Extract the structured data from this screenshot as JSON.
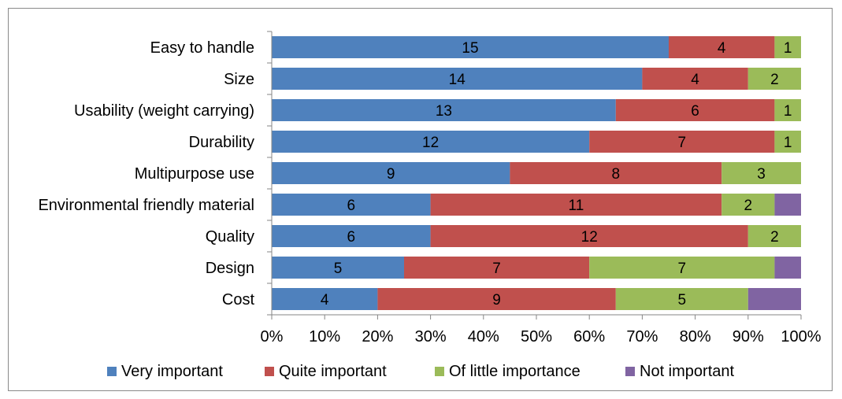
{
  "chart_data": {
    "type": "bar",
    "orientation": "horizontal",
    "stacked": "percent",
    "title": "",
    "xlabel": "",
    "ylabel": "",
    "xlim": [
      0,
      100
    ],
    "x_ticks": [
      "0%",
      "10%",
      "20%",
      "30%",
      "40%",
      "50%",
      "60%",
      "70%",
      "80%",
      "90%",
      "100%"
    ],
    "grid": false,
    "legend_position": "bottom",
    "categories": [
      "Easy to handle",
      "Size",
      "Usability (weight carrying)",
      "Durability",
      "Multipurpose use",
      "Environmental friendly material",
      "Quality",
      "Design",
      "Cost"
    ],
    "series": [
      {
        "name": "Very important",
        "color": "#4f81bd",
        "values": [
          15,
          14,
          13,
          12,
          9,
          6,
          6,
          5,
          4
        ]
      },
      {
        "name": "Quite important",
        "color": "#c0504d",
        "values": [
          4,
          4,
          6,
          7,
          8,
          11,
          12,
          7,
          9
        ]
      },
      {
        "name": "Of little importance",
        "color": "#9bbb59",
        "values": [
          1,
          2,
          1,
          1,
          3,
          2,
          2,
          7,
          5
        ]
      },
      {
        "name": "Not important",
        "color": "#8064a2",
        "values": [
          0,
          0,
          0,
          0,
          0,
          1,
          0,
          1,
          2
        ]
      }
    ]
  }
}
